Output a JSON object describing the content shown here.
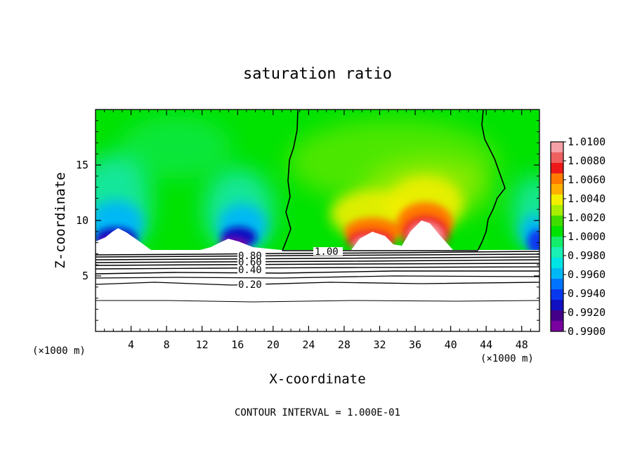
{
  "chart_data": {
    "type": "heatmap",
    "title": "saturation ratio",
    "xlabel": "X-coordinate",
    "ylabel": "Z-coordinate",
    "x_unit": "(×1000 m)",
    "y_unit": "(×1000 m)",
    "xlim": [
      0,
      50
    ],
    "ylim": [
      0,
      20
    ],
    "x_ticks": [
      4,
      8,
      12,
      16,
      20,
      24,
      28,
      32,
      36,
      40,
      44,
      48
    ],
    "y_ticks": [
      5,
      10,
      15
    ],
    "colorbar": {
      "min": 0.99,
      "max": 1.01,
      "labels": [
        "1.0100",
        "1.0080",
        "1.0060",
        "1.0040",
        "1.0020",
        "1.0000",
        "0.9980",
        "0.9960",
        "0.9940",
        "0.9920",
        "0.9900"
      ],
      "colors": [
        "#f4a0a6",
        "#ee6060",
        "#ee1818",
        "#ff7a00",
        "#ffb000",
        "#f2f000",
        "#a8ee00",
        "#40dd00",
        "#00e200",
        "#14ec6c",
        "#18f0b4",
        "#00e4e4",
        "#00b8f4",
        "#0074ff",
        "#0838ee",
        "#1010c0",
        "#440088",
        "#7a00a0"
      ]
    },
    "contour_labels": [
      "0.80",
      "0.60",
      "0.40",
      "0.20",
      "1.00"
    ],
    "note": "CONTOUR INTERVAL = 1.000E-01"
  }
}
